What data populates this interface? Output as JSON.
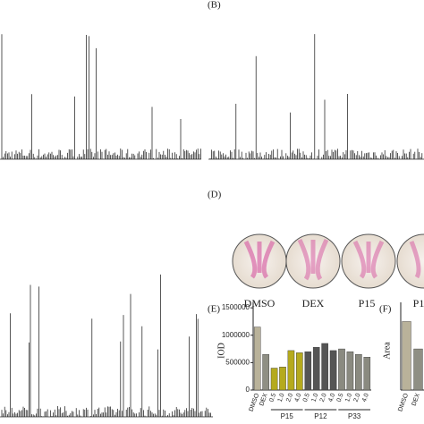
{
  "panels": {
    "b": "(B)",
    "d": "(D)",
    "e": "(E)",
    "f": "(F)"
  },
  "plates": [
    "DMSO",
    "DEX",
    "P15",
    "P1"
  ],
  "chart_e": {
    "type": "bar",
    "y_label": "IOD",
    "ylim": [
      0,
      1600000
    ],
    "yticks": [
      0,
      500000,
      1000000,
      1500000
    ],
    "series": [
      {
        "name": "DMSO",
        "color": "#b9b29a",
        "values": [
          1150000
        ]
      },
      {
        "name": "DEX",
        "color": "#8f8f84",
        "values": [
          650000
        ]
      },
      {
        "name": "P15",
        "color": "#b5aa1e",
        "categories": [
          "0.5",
          "1.0",
          "2.0",
          "4.0"
        ],
        "values": [
          400000,
          420000,
          720000,
          680000
        ]
      },
      {
        "name": "P12",
        "color": "#555555",
        "categories": [
          "0.5",
          "1.0",
          "2.0",
          "4.0"
        ],
        "values": [
          700000,
          780000,
          850000,
          720000
        ]
      },
      {
        "name": "P33",
        "color": "#8a8a80",
        "categories": [
          "0.5",
          "1.0",
          "2.0",
          "4.0"
        ],
        "values": [
          750000,
          700000,
          650000,
          600000
        ]
      }
    ]
  },
  "chart_f": {
    "type": "bar",
    "y_label": "Area",
    "ylim": [
      0,
      3200
    ],
    "series": [
      {
        "name": "DMSO",
        "color": "#b9b29a",
        "values": [
          2500
        ]
      },
      {
        "name": "DEX",
        "color": "#8f8f84",
        "values": [
          1500
        ]
      }
    ]
  }
}
